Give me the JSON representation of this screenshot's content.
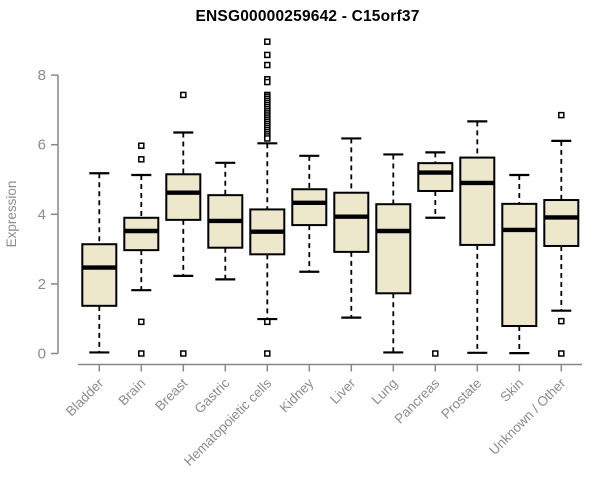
{
  "title": "ENSG00000259642 - C15orf37",
  "chart_data": {
    "type": "boxplot",
    "title": "ENSG00000259642 - C15orf37",
    "ylabel": "Expression",
    "xlabel": "",
    "ylim": [
      0,
      8
    ],
    "yticks": [
      "0",
      "2",
      "4",
      "6",
      "8"
    ],
    "grid": false,
    "legend": "none",
    "box_fill_color": "#EDE7CB",
    "box_line_color": "#000000",
    "axis_color": "#878787",
    "tick_label_color": "#8C8C8C",
    "categories": [
      "Bladder",
      "Brain",
      "Breast",
      "Gastric",
      "Hematopoietic cells",
      "Kidney",
      "Liver",
      "Lung",
      "Pancreas",
      "Prostate",
      "Skin",
      "Unknown / Other"
    ],
    "boxes": [
      {
        "label": "Bladder",
        "whisker_low": 0.03,
        "q1": 1.37,
        "median": 2.47,
        "q3": 3.14,
        "whisker_high": 5.18,
        "outliers": []
      },
      {
        "label": "Brain",
        "whisker_low": 1.82,
        "q1": 2.97,
        "median": 3.52,
        "q3": 3.9,
        "whisker_high": 5.13,
        "outliers": [
          5.97,
          5.58,
          0.91,
          0.0
        ]
      },
      {
        "label": "Breast",
        "whisker_low": 2.23,
        "q1": 3.84,
        "median": 4.62,
        "q3": 5.15,
        "whisker_high": 6.35,
        "outliers": [
          7.43,
          0.0
        ]
      },
      {
        "label": "Gastric",
        "whisker_low": 2.13,
        "q1": 3.04,
        "median": 3.81,
        "q3": 4.55,
        "whisker_high": 5.48,
        "outliers": []
      },
      {
        "label": "Hematopoietic cells",
        "whisker_low": 0.99,
        "q1": 2.85,
        "median": 3.5,
        "q3": 4.14,
        "whisker_high": 6.04,
        "outliers": [
          8.96,
          8.58,
          8.29,
          7.88,
          7.8,
          7.43,
          7.38,
          7.32,
          7.26,
          7.2,
          7.14,
          7.08,
          7.02,
          6.96,
          6.9,
          6.84,
          6.78,
          6.72,
          6.66,
          6.6,
          6.54,
          6.48,
          6.42,
          6.36,
          6.3,
          6.24,
          6.18,
          0.91,
          0.0
        ]
      },
      {
        "label": "Kidney",
        "whisker_low": 2.35,
        "q1": 3.69,
        "median": 4.33,
        "q3": 4.72,
        "whisker_high": 5.68,
        "outliers": []
      },
      {
        "label": "Liver",
        "whisker_low": 1.03,
        "q1": 2.92,
        "median": 3.93,
        "q3": 4.62,
        "whisker_high": 6.18,
        "outliers": []
      },
      {
        "label": "Lung",
        "whisker_low": 0.03,
        "q1": 1.73,
        "median": 3.52,
        "q3": 4.29,
        "whisker_high": 5.72,
        "outliers": []
      },
      {
        "label": "Pancreas",
        "whisker_low": 3.9,
        "q1": 4.67,
        "median": 5.2,
        "q3": 5.47,
        "whisker_high": 5.78,
        "outliers": [
          0.0
        ]
      },
      {
        "label": "Prostate",
        "whisker_low": 0.02,
        "q1": 3.12,
        "median": 4.9,
        "q3": 5.63,
        "whisker_high": 6.67,
        "outliers": []
      },
      {
        "label": "Skin",
        "whisker_low": 0.01,
        "q1": 0.79,
        "median": 3.55,
        "q3": 4.3,
        "whisker_high": 5.13,
        "outliers": []
      },
      {
        "label": "Unknown / Other",
        "whisker_low": 1.23,
        "q1": 3.09,
        "median": 3.91,
        "q3": 4.41,
        "whisker_high": 6.11,
        "outliers": [
          6.85,
          0.93,
          0.0
        ]
      }
    ]
  }
}
